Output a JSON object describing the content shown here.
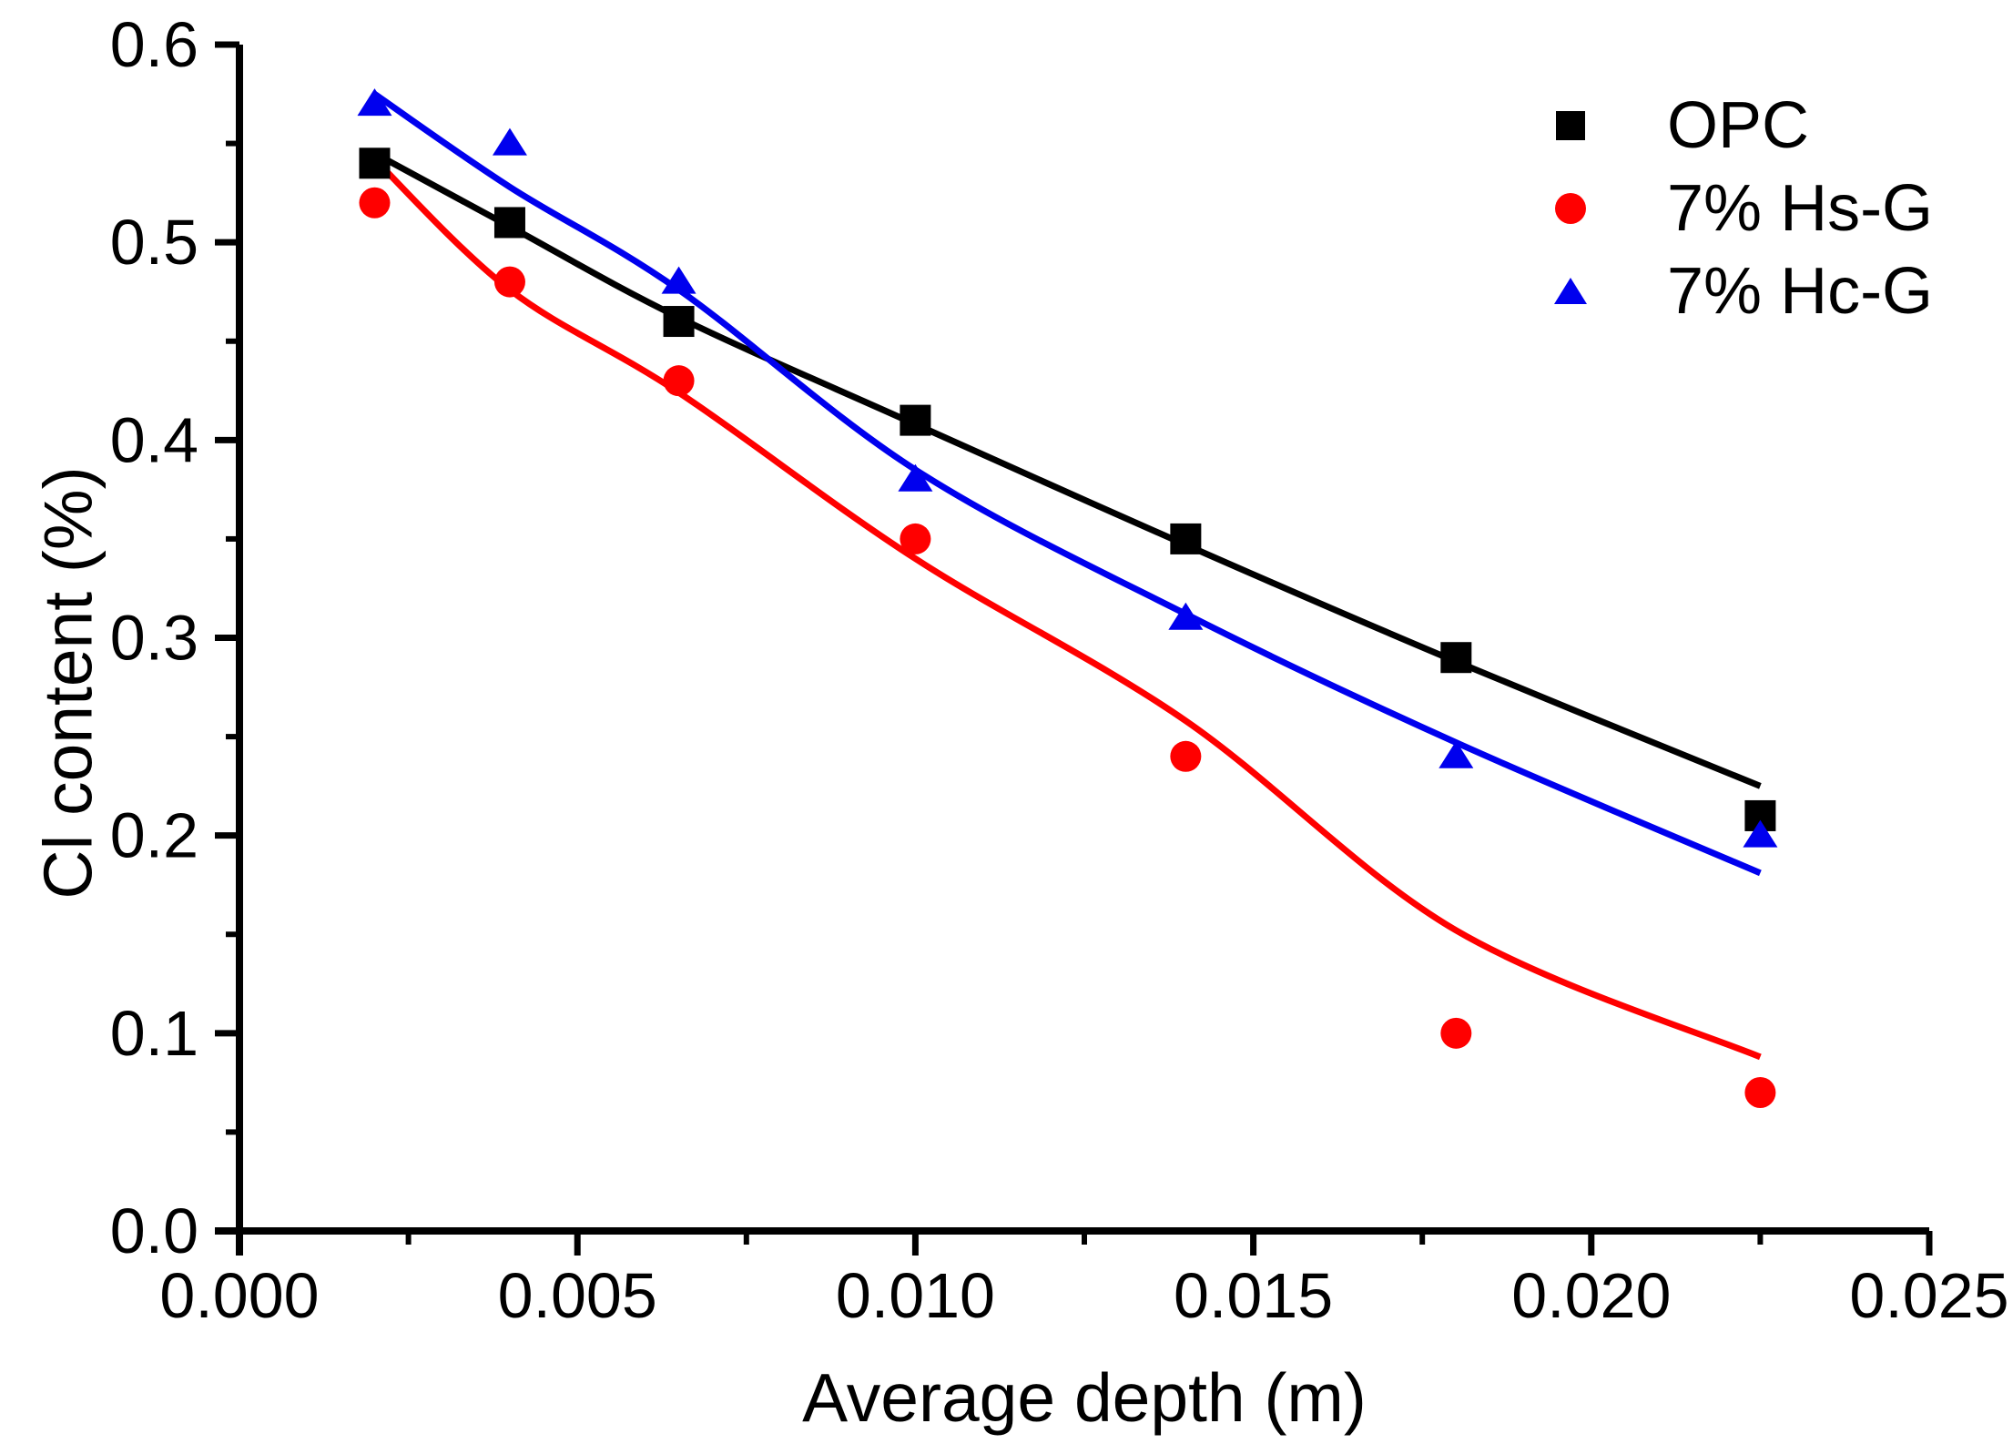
{
  "chart_data": {
    "type": "scatter",
    "title": "",
    "xlabel": "Average depth (m)",
    "ylabel": "Cl content (%)",
    "xlim": [
      0.0,
      0.025
    ],
    "ylim": [
      0.0,
      0.6
    ],
    "grid": false,
    "x_major_ticks": [
      0.0,
      0.005,
      0.01,
      0.015,
      0.02,
      0.025
    ],
    "x_tick_labels": [
      "0.000",
      "0.005",
      "0.010",
      "0.015",
      "0.020",
      "0.025"
    ],
    "x_minor_ticks": [
      0.0025,
      0.0075,
      0.0125,
      0.0175,
      0.0225
    ],
    "y_major_ticks": [
      0.0,
      0.1,
      0.2,
      0.3,
      0.4,
      0.5,
      0.6
    ],
    "y_tick_labels": [
      "0.0",
      "0.1",
      "0.2",
      "0.3",
      "0.4",
      "0.5",
      "0.6"
    ],
    "y_minor_ticks": [
      0.05,
      0.15,
      0.25,
      0.35,
      0.45,
      0.55
    ],
    "legend": {
      "position": "top-right"
    },
    "axis_color": "#000000",
    "series": [
      {
        "name": "OPC",
        "marker": "square",
        "color": "#000000",
        "x": [
          0.002,
          0.004,
          0.0065,
          0.01,
          0.014,
          0.018,
          0.0225
        ],
        "y": [
          0.54,
          0.51,
          0.46,
          0.41,
          0.35,
          0.29,
          0.21
        ],
        "fit": {
          "x": [
            0.002,
            0.004,
            0.0065,
            0.01,
            0.014,
            0.018,
            0.0225
          ],
          "y": [
            0.545,
            0.508,
            0.462,
            0.408,
            0.347,
            0.288,
            0.225
          ]
        }
      },
      {
        "name": "7% Hs-G",
        "marker": "circle",
        "color": "#ff0000",
        "x": [
          0.002,
          0.004,
          0.0065,
          0.01,
          0.014,
          0.018,
          0.0225
        ],
        "y": [
          0.52,
          0.48,
          0.43,
          0.35,
          0.24,
          0.1,
          0.07
        ],
        "fit": {
          "x": [
            0.002,
            0.004,
            0.0065,
            0.01,
            0.014,
            0.018,
            0.0225
          ],
          "y": [
            0.542,
            0.476,
            0.424,
            0.34,
            0.258,
            0.152,
            0.088
          ]
        }
      },
      {
        "name": "7% Hc-G",
        "marker": "triangle",
        "color": "#0000ee",
        "x": [
          0.002,
          0.004,
          0.0065,
          0.01,
          0.014,
          0.018,
          0.0225
        ],
        "y": [
          0.57,
          0.55,
          0.48,
          0.38,
          0.31,
          0.24,
          0.2
        ],
        "fit": {
          "x": [
            0.002,
            0.004,
            0.0065,
            0.01,
            0.014,
            0.018,
            0.0225
          ],
          "y": [
            0.575,
            0.528,
            0.476,
            0.385,
            0.312,
            0.247,
            0.181
          ]
        }
      }
    ]
  }
}
